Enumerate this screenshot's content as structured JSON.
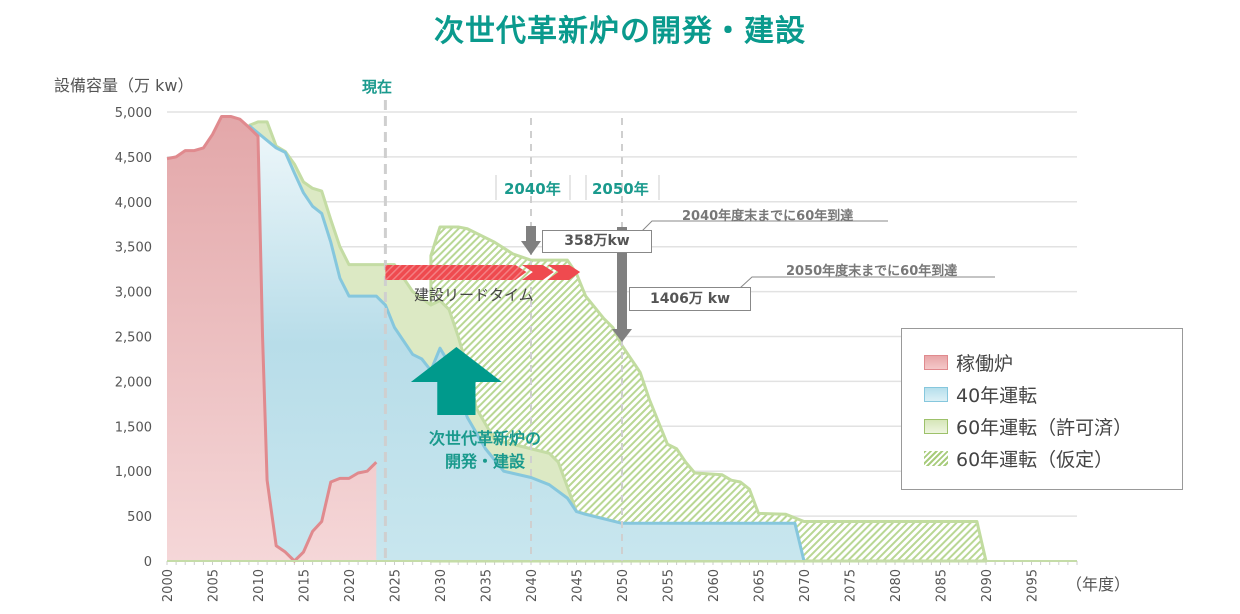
{
  "title": "次世代革新炉の開発・建設",
  "y_axis_label": "設備容量（万 kw）",
  "x_axis_unit": "（年度）",
  "now_label": "現在",
  "markers": {
    "year_2040": "2040年",
    "year_2050": "2050年",
    "callout_2040_value": "358万kw",
    "callout_2040_note": "2040年度末までに60年到達",
    "callout_2050_value": "1406万 kw",
    "callout_2050_note": "2050年度末までに60年到達",
    "lead_time_label": "建設リードタイム",
    "development_label_line1": "次世代革新炉の",
    "development_label_line2": "開発・建設"
  },
  "legend": {
    "items": [
      {
        "label": "稼働炉",
        "swatch": "red"
      },
      {
        "label": "40年運転",
        "swatch": "blue"
      },
      {
        "label": "60年運転（許可済）",
        "swatch": "green"
      },
      {
        "label": "60年運転（仮定）",
        "swatch": "hatch"
      }
    ]
  },
  "colors": {
    "title": "#0a9a8d",
    "operating": "#e08a8e",
    "forty_year": "#86c7dd",
    "sixty_licensed": "#b5d38a",
    "sixty_assumed": "#a8cc7c",
    "lead_arrow": "#ef4a4f",
    "dev_arrow": "#009a8c",
    "gray_arrow": "#808080"
  },
  "chart_data": {
    "type": "area",
    "title": "次世代革新炉の開発・建設",
    "xlabel": "（年度）",
    "ylabel": "設備容量（万 kw）",
    "xlim": [
      2000,
      2100
    ],
    "ylim": [
      0,
      5000
    ],
    "yticks": [
      0,
      500,
      1000,
      1500,
      2000,
      2500,
      3000,
      3500,
      4000,
      4500,
      5000
    ],
    "ytick_labels": [
      "0",
      "500",
      "1,000",
      "1,500",
      "2,000",
      "2,500",
      "3,000",
      "3,500",
      "4,000",
      "4,500",
      "5,000"
    ],
    "xticks": [
      2000,
      2005,
      2010,
      2015,
      2020,
      2025,
      2030,
      2035,
      2040,
      2045,
      2050,
      2055,
      2060,
      2065,
      2070,
      2075,
      2080,
      2085,
      2090,
      2095
    ],
    "grid": "horizontal",
    "legend_position": "right",
    "series": [
      {
        "name": "稼働炉",
        "points": [
          [
            2000,
            4480
          ],
          [
            2001,
            4500
          ],
          [
            2002,
            4570
          ],
          [
            2003,
            4570
          ],
          [
            2004,
            4600
          ],
          [
            2005,
            4750
          ],
          [
            2006,
            4950
          ],
          [
            2007,
            4950
          ],
          [
            2008,
            4920
          ],
          [
            2009,
            4830
          ],
          [
            2010,
            4730
          ],
          [
            2010.5,
            2500
          ],
          [
            2011,
            900
          ],
          [
            2012,
            170
          ],
          [
            2013,
            100
          ],
          [
            2014,
            0
          ],
          [
            2015,
            100
          ],
          [
            2016,
            330
          ],
          [
            2017,
            440
          ],
          [
            2018,
            880
          ],
          [
            2019,
            920
          ],
          [
            2020,
            920
          ],
          [
            2021,
            980
          ],
          [
            2022,
            1000
          ],
          [
            2023,
            1100
          ]
        ]
      },
      {
        "name": "40年運転",
        "points": [
          [
            2009,
            4850
          ],
          [
            2012,
            4600
          ],
          [
            2013,
            4550
          ],
          [
            2014,
            4320
          ],
          [
            2015,
            4100
          ],
          [
            2016,
            3950
          ],
          [
            2017,
            3870
          ],
          [
            2018,
            3550
          ],
          [
            2019,
            3150
          ],
          [
            2020,
            2950
          ],
          [
            2023,
            2950
          ],
          [
            2024,
            2850
          ],
          [
            2025,
            2600
          ],
          [
            2027,
            2300
          ],
          [
            2028,
            2250
          ],
          [
            2029,
            2120
          ],
          [
            2030,
            2370
          ],
          [
            2031,
            2200
          ],
          [
            2033,
            1600
          ],
          [
            2035,
            1250
          ],
          [
            2037,
            1000
          ],
          [
            2040,
            930
          ],
          [
            2042,
            850
          ],
          [
            2044,
            700
          ],
          [
            2045,
            550
          ],
          [
            2046,
            520
          ],
          [
            2050,
            420
          ],
          [
            2069,
            420
          ],
          [
            2070,
            0
          ]
        ]
      },
      {
        "name": "60年運転（許可済）",
        "points": [
          [
            2009,
            4850
          ],
          [
            2010,
            4890
          ],
          [
            2011,
            4890
          ],
          [
            2012,
            4620
          ],
          [
            2013,
            4560
          ],
          [
            2014,
            4420
          ],
          [
            2015,
            4220
          ],
          [
            2016,
            4150
          ],
          [
            2017,
            4120
          ],
          [
            2018,
            3800
          ],
          [
            2019,
            3500
          ],
          [
            2020,
            3300
          ],
          [
            2025,
            3300
          ],
          [
            2027,
            3000
          ],
          [
            2029,
            2850
          ],
          [
            2030,
            2900
          ],
          [
            2031,
            2800
          ],
          [
            2032,
            2500
          ],
          [
            2033,
            2150
          ],
          [
            2034,
            1700
          ],
          [
            2036,
            1350
          ],
          [
            2038,
            1300
          ],
          [
            2040,
            1250
          ],
          [
            2042,
            1200
          ],
          [
            2043,
            1100
          ],
          [
            2045,
            550
          ],
          [
            2050,
            420
          ]
        ]
      },
      {
        "name": "60年運転（仮定）",
        "points": [
          [
            2029,
            3400
          ],
          [
            2030,
            3720
          ],
          [
            2032,
            3720
          ],
          [
            2033,
            3700
          ],
          [
            2035,
            3600
          ],
          [
            2036,
            3550
          ],
          [
            2038,
            3420
          ],
          [
            2040,
            3350
          ],
          [
            2044,
            3350
          ],
          [
            2045,
            3200
          ],
          [
            2046,
            2950
          ],
          [
            2048,
            2700
          ],
          [
            2049,
            2600
          ],
          [
            2050,
            2400
          ],
          [
            2051,
            2250
          ],
          [
            2052,
            2100
          ],
          [
            2053,
            1800
          ],
          [
            2054,
            1550
          ],
          [
            2055,
            1300
          ],
          [
            2056,
            1250
          ],
          [
            2057,
            1100
          ],
          [
            2058,
            980
          ],
          [
            2061,
            960
          ],
          [
            2062,
            900
          ],
          [
            2063,
            880
          ],
          [
            2064,
            800
          ],
          [
            2065,
            530
          ],
          [
            2068,
            520
          ],
          [
            2070,
            440
          ],
          [
            2089,
            440
          ],
          [
            2090,
            0
          ]
        ]
      }
    ],
    "annotations": [
      {
        "text": "現在",
        "x": 2024
      },
      {
        "text": "2040年",
        "x": 2040
      },
      {
        "text": "2050年",
        "x": 2050
      },
      {
        "text": "358万kw",
        "note": "2040年度末までに60年到達",
        "x": 2040
      },
      {
        "text": "1406万 kw",
        "note": "2050年度末までに60年到達",
        "x": 2050
      },
      {
        "text": "建設リードタイム",
        "x_range": [
          2024,
          2044
        ]
      },
      {
        "text": "次世代革新炉の開発・建設"
      }
    ]
  }
}
